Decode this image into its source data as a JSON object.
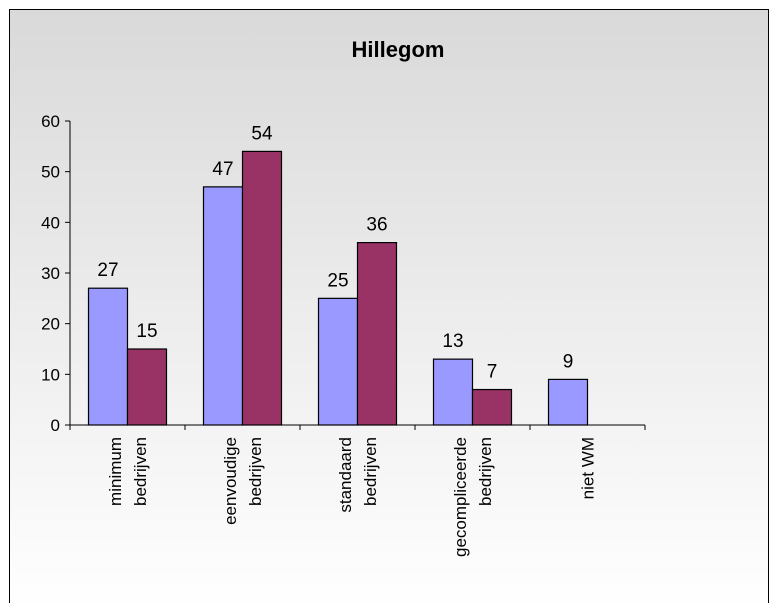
{
  "chart_data": {
    "type": "bar",
    "title": "Hillegom",
    "categories": [
      [
        "minimum",
        "bedrijven"
      ],
      [
        "eenvoudige",
        "bedrijven"
      ],
      [
        "standaard",
        "bedrijven"
      ],
      [
        "gecompliceerde",
        "bedrijven"
      ],
      [
        "niet WM"
      ]
    ],
    "series": [
      {
        "values": [
          27,
          47,
          25,
          13,
          9
        ],
        "color": "#9999ff"
      },
      {
        "values": [
          15,
          54,
          36,
          7,
          null
        ],
        "color": "#993366"
      }
    ],
    "ylim": [
      0,
      60
    ],
    "yticks": [
      "0",
      "10",
      "20",
      "30",
      "40",
      "50",
      "60"
    ],
    "grid": false,
    "legend": "none",
    "background": {
      "top": "#d9d9d9",
      "bottom": "#ffffff"
    }
  }
}
